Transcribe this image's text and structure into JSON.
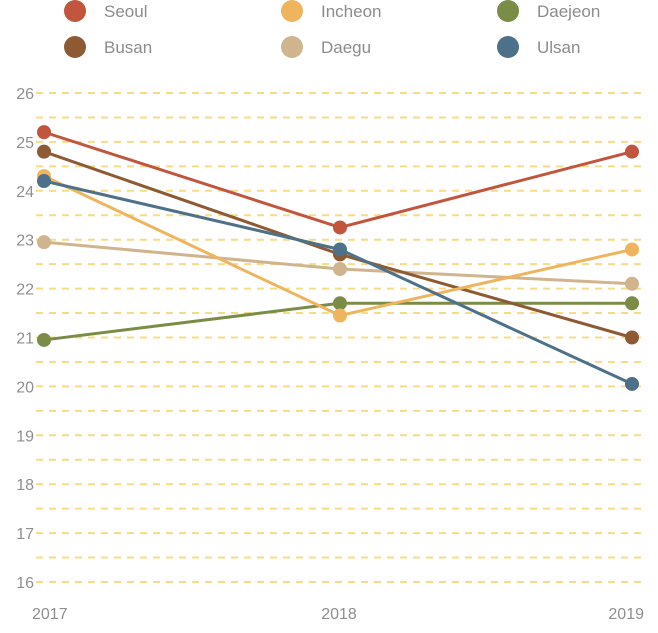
{
  "chart_data": {
    "type": "line",
    "title": "",
    "xlabel": "",
    "ylabel": "",
    "categories": [
      "2017",
      "2018",
      "2019"
    ],
    "ylim": [
      16,
      26
    ],
    "yticks": [
      "16",
      "17",
      "18",
      "19",
      "20",
      "21",
      "22",
      "23",
      "24",
      "25",
      "26"
    ],
    "grid": "horizontal dashed yellow lines",
    "legend_position": "top",
    "series": [
      {
        "name": "Seoul",
        "color": "#c2553d",
        "values": [
          25.2,
          23.25,
          24.8
        ]
      },
      {
        "name": "Incheon",
        "color": "#efb55e",
        "values": [
          24.3,
          21.45,
          22.8
        ]
      },
      {
        "name": "Daejeon",
        "color": "#7a8c45",
        "values": [
          20.95,
          21.7,
          21.7
        ]
      },
      {
        "name": "Busan",
        "color": "#8e5a34",
        "values": [
          24.8,
          22.7,
          21.0
        ]
      },
      {
        "name": "Daegu",
        "color": "#d0b48e",
        "values": [
          22.95,
          22.4,
          22.1
        ]
      },
      {
        "name": "Ulsan",
        "color": "#4d7189",
        "values": [
          24.2,
          22.8,
          20.05
        ]
      }
    ],
    "draw_order": [
      "Daejeon",
      "Daegu",
      "Busan",
      "Incheon",
      "Seoul",
      "Ulsan"
    ]
  },
  "colors": {
    "grid": "#f6dc84",
    "axis_text": "#8f8f8f",
    "legend_text": "#8c8c8c"
  }
}
